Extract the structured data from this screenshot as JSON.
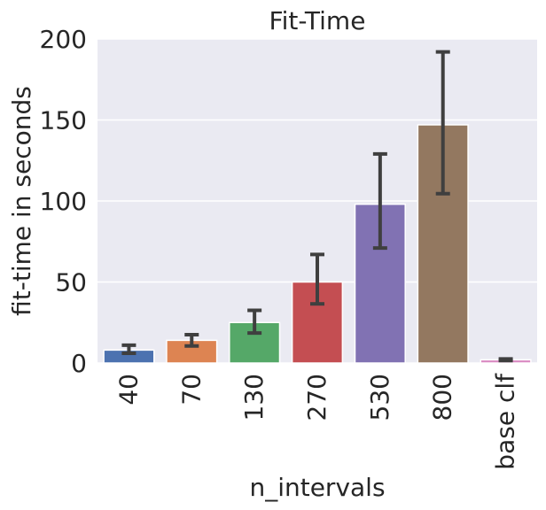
{
  "chart_data": {
    "type": "bar",
    "title": "Fit-Time",
    "xlabel": "n_intervals",
    "ylabel": "fit-time in seconds",
    "categories": [
      "40",
      "70",
      "130",
      "270",
      "530",
      "800",
      "base clf"
    ],
    "values": [
      8,
      14,
      25,
      50,
      98,
      147,
      2
    ],
    "errors_low": [
      6,
      10.5,
      18.5,
      36.5,
      71,
      104.5,
      1.5
    ],
    "errors_high": [
      11,
      17.5,
      32.5,
      67,
      129,
      192,
      2.5
    ],
    "ylim": [
      0,
      200
    ],
    "yticks": [
      0,
      50,
      100,
      150,
      200
    ],
    "grid": true,
    "legend": "none",
    "colors": [
      "#4c72b0",
      "#dd8452",
      "#55a868",
      "#c44e52",
      "#8172b3",
      "#937860",
      "#da8bc3"
    ],
    "background": "#eaeaf2",
    "error_color": "#3f3f3f"
  }
}
